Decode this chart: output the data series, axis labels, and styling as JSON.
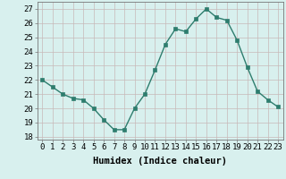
{
  "x": [
    0,
    1,
    2,
    3,
    4,
    5,
    6,
    7,
    8,
    9,
    10,
    11,
    12,
    13,
    14,
    15,
    16,
    17,
    18,
    19,
    20,
    21,
    22,
    23
  ],
  "y": [
    22,
    21.5,
    21,
    20.7,
    20.6,
    20,
    19.2,
    18.5,
    18.5,
    20,
    21,
    22.7,
    24.5,
    25.6,
    25.4,
    26.3,
    27,
    26.4,
    26.2,
    24.8,
    22.9,
    21.2,
    20.6,
    20.1
  ],
  "line_color": "#2e7d6e",
  "marker": "s",
  "marker_size": 2.5,
  "bg_color": "#d8f0ee",
  "grid_color_major": "#c8b8b8",
  "xlabel": "Humidex (Indice chaleur)",
  "ylim": [
    17.8,
    27.5
  ],
  "xlim": [
    -0.5,
    23.5
  ],
  "yticks": [
    18,
    19,
    20,
    21,
    22,
    23,
    24,
    25,
    26,
    27
  ],
  "xticks": [
    0,
    1,
    2,
    3,
    4,
    5,
    6,
    7,
    8,
    9,
    10,
    11,
    12,
    13,
    14,
    15,
    16,
    17,
    18,
    19,
    20,
    21,
    22,
    23
  ],
  "tick_label_fontsize": 6.5,
  "xlabel_fontsize": 7.5,
  "linewidth": 1.0
}
